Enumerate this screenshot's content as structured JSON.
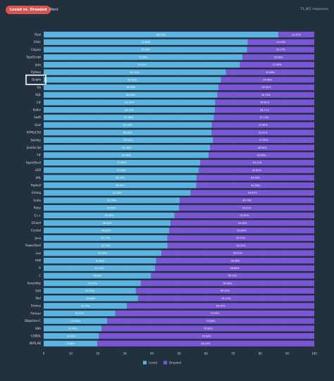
{
  "header": {
    "active_tab": "Loved vs. Dreaded",
    "tab_want": "Want",
    "responses": "71,467 responses"
  },
  "colors": {
    "loved": "#5ab4df",
    "dreaded": "#7a55d6",
    "background": "#22303f",
    "highlight": "#ffffff"
  },
  "highlighted_category": "Delphi",
  "chart_data": {
    "type": "bar",
    "orientation": "horizontal",
    "stacked": true,
    "title": "",
    "xlabel": "",
    "ylabel": "",
    "xlim": [
      0,
      100
    ],
    "xticks": [
      0,
      10,
      20,
      30,
      40,
      50,
      60,
      70,
      80,
      90,
      100
    ],
    "legend_position": "bottom",
    "categories": [
      "Rust",
      "Elixir",
      "Clojure",
      "TypeScript",
      "Julia",
      "Python",
      "Delphi",
      "Go",
      "SQL",
      "C#",
      "Kotlin",
      "Swift",
      "Dart",
      "HTML/CSS",
      "Solidity",
      "JavaScript",
      "F#",
      "Bash/Shell",
      "LISP",
      "APL",
      "Haskell",
      "Erlang",
      "Scala",
      "Ruby",
      "C++",
      "OCaml",
      "Crystal",
      "Java",
      "PowerShell",
      "Lua",
      "PHP",
      "R",
      "C",
      "Assembly",
      "SAS",
      "Perl",
      "Groovy",
      "Fortran",
      "Objective-C",
      "VBA",
      "COBOL",
      "MATLAB"
    ],
    "series": [
      {
        "name": "Loved",
        "values": [
          86.73,
          75.46,
          75.23,
          73.46,
          72.51,
          67.34,
          65.51,
          64.58,
          64.25,
          63.39,
          63.29,
          62.88,
          62.16,
          62.09,
          62.5,
          61.46,
          60.96,
          57.89,
          57.38,
          56.55,
          56.44,
          54.33,
          50.3,
          49.99,
          48.39,
          46.9,
          46.35,
          45.75,
          45.79,
          43.48,
          41.62,
          41.14,
          39.68,
          35.91,
          34.1,
          34.88,
          30.75,
          26.47,
          23.44,
          21.42,
          20.42,
          19.8
        ],
        "labels": [
          "86.73%",
          "75.46%",
          "75.23%",
          "73.46%",
          "72.51%",
          "67.34%",
          "65.51%",
          "64.58%",
          "64.25%",
          "63.39%",
          "63.29%",
          "62.88%",
          "62.16%",
          "62.09%",
          "62.50%",
          "61.46%",
          "60.96%",
          "57.89%",
          "57.38%",
          "56.55%",
          "56.44%",
          "54.33%",
          "50.30%",
          "49.99%",
          "48.39%",
          "46.90%",
          "46.35%",
          "45.75%",
          "45.79%",
          "43.48%",
          "41.62%",
          "41.14%",
          "39.68%",
          "35.91%",
          "34.10%",
          "34.88%",
          "30.75%",
          "26.47%",
          "23.44%",
          "21.42%",
          "20.42%",
          "19.80%"
        ]
      },
      {
        "name": "Dreaded",
        "values": [
          13.27,
          24.54,
          24.77,
          26.54,
          27.49,
          32.66,
          34.49,
          35.42,
          35.75,
          36.61,
          36.71,
          37.12,
          37.84,
          37.91,
          37.5,
          38.54,
          39.04,
          42.11,
          42.62,
          43.45,
          43.56,
          45.67,
          49.7,
          50.01,
          51.61,
          53.1,
          53.65,
          54.25,
          54.21,
          56.52,
          58.38,
          58.86,
          60.32,
          64.09,
          65.9,
          65.12,
          69.25,
          73.53,
          76.56,
          78.58,
          79.58,
          80.2
        ],
        "labels": [
          "13.27%",
          "24.54%",
          "24.77%",
          "26.54%",
          "27.49%",
          "32.66%",
          "34.49%",
          "35.42%",
          "35.75%",
          "36.61%",
          "36.71%",
          "37.12%",
          "37.84%",
          "37.91%",
          "37.50%",
          "38.54%",
          "39.04%",
          "42.11%",
          "42.62%",
          "43.45%",
          "43.56%",
          "45.67%",
          "49.70%",
          "50.01%",
          "51.61%",
          "53.10%",
          "53.65%",
          "54.25%",
          "54.21%",
          "56.52%",
          "58.38%",
          "58.86%",
          "60.32%",
          "64.09%",
          "65.90%",
          "65.12%",
          "69.25%",
          "73.53%",
          "76.56%",
          "78.58%",
          "79.58%",
          "80.20%"
        ]
      }
    ]
  }
}
